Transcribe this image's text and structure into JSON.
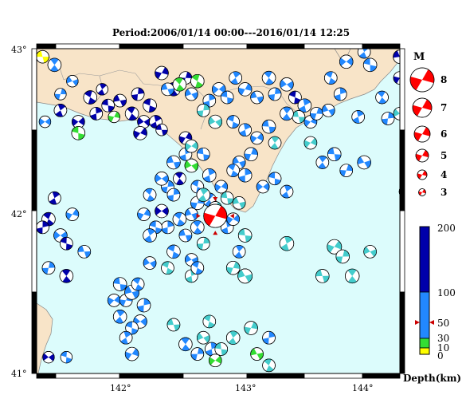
{
  "title": "Period:2006/01/14 00:00---2016/01/14 12:25",
  "lat_labels": [
    "43°",
    "42°",
    "41°"
  ],
  "lon_labels": [
    "142°",
    "143°",
    "144°"
  ],
  "magnitude_legend": {
    "heading": "M",
    "values": [
      "8",
      "7",
      "6",
      "5",
      "4",
      "3"
    ]
  },
  "depth_legend": {
    "labels": [
      "200",
      "100",
      "50",
      "30",
      "10",
      "0"
    ],
    "axis_label": "Depth(km)"
  },
  "colors": {
    "sea": "#dcfcfc",
    "land": "#f8e4c8",
    "mainshock": "#ff0000",
    "depth_0_10": "#ffff00",
    "depth_10_30": "#33dd33",
    "depth_30_70": "#44cccc",
    "depth_70_100": "#2288ff",
    "depth_100_200": "#0000aa"
  },
  "mainshock": {
    "lon": 142.75,
    "lat": 41.97,
    "magnitude": 7.0
  },
  "events": [
    [
      141.3,
      42.95,
      4.3,
      0
    ],
    [
      141.4,
      42.9,
      4.5,
      100
    ],
    [
      141.45,
      42.72,
      4,
      100
    ],
    [
      141.55,
      42.8,
      4,
      100
    ],
    [
      141.7,
      42.7,
      4.5,
      200
    ],
    [
      141.75,
      42.6,
      4.3,
      200
    ],
    [
      141.6,
      42.55,
      4.3,
      200
    ],
    [
      141.85,
      42.65,
      4.3,
      200
    ],
    [
      141.8,
      42.75,
      4,
      200
    ],
    [
      141.9,
      42.58,
      4,
      20
    ],
    [
      141.95,
      42.68,
      4.3,
      200
    ],
    [
      142.05,
      42.6,
      4.5,
      200
    ],
    [
      142.1,
      42.72,
      4.3,
      200
    ],
    [
      142.15,
      42.55,
      4.3,
      200
    ],
    [
      142.2,
      42.65,
      4.5,
      200
    ],
    [
      142.25,
      42.55,
      4.3,
      200
    ],
    [
      142.12,
      42.48,
      4.5,
      200
    ],
    [
      142.3,
      42.5,
      4,
      200
    ],
    [
      142.4,
      42.75,
      4.5,
      200
    ],
    [
      142.5,
      42.82,
      4.3,
      200
    ],
    [
      142.55,
      42.72,
      4.3,
      100
    ],
    [
      142.6,
      42.8,
      4.5,
      20
    ],
    [
      142.7,
      42.68,
      4.3,
      100
    ],
    [
      142.78,
      42.75,
      4.5,
      100
    ],
    [
      142.85,
      42.7,
      4.3,
      100
    ],
    [
      142.92,
      42.82,
      4.3,
      100
    ],
    [
      143.0,
      42.75,
      4.5,
      100
    ],
    [
      143.1,
      42.7,
      4.3,
      100
    ],
    [
      143.2,
      42.82,
      4.5,
      100
    ],
    [
      143.25,
      42.72,
      4.3,
      100
    ],
    [
      143.35,
      42.78,
      4.5,
      100
    ],
    [
      143.42,
      42.7,
      4.3,
      200
    ],
    [
      143.5,
      42.65,
      4.5,
      100
    ],
    [
      143.55,
      42.55,
      4.3,
      100
    ],
    [
      143.45,
      42.58,
      4.3,
      60
    ],
    [
      143.35,
      42.6,
      4.5,
      100
    ],
    [
      143.6,
      42.6,
      4.3,
      100
    ],
    [
      143.7,
      42.62,
      4.3,
      100
    ],
    [
      143.72,
      42.82,
      4.3,
      100
    ],
    [
      143.8,
      42.72,
      4.3,
      100
    ],
    [
      143.85,
      42.92,
      4.5,
      100
    ],
    [
      144.05,
      42.9,
      4.5,
      100
    ],
    [
      144.0,
      42.98,
      4.3,
      100
    ],
    [
      144.3,
      42.82,
      4.3,
      200
    ],
    [
      144.3,
      42.95,
      4.5,
      200
    ],
    [
      144.15,
      42.7,
      4.3,
      100
    ],
    [
      144.2,
      42.57,
      4.3,
      100
    ],
    [
      144.3,
      42.6,
      4.3,
      60
    ],
    [
      144.45,
      42.65,
      4.3,
      100
    ],
    [
      143.95,
      42.58,
      4.3,
      100
    ],
    [
      143.55,
      42.42,
      4.3,
      60
    ],
    [
      143.75,
      42.35,
      4.5,
      100
    ],
    [
      143.65,
      42.3,
      4.3,
      100
    ],
    [
      143.85,
      42.25,
      4.3,
      100
    ],
    [
      144.0,
      42.3,
      4.5,
      100
    ],
    [
      144.4,
      42.22,
      4.3,
      100
    ],
    [
      144.35,
      42.12,
      4.5,
      200
    ],
    [
      141.32,
      42.55,
      4,
      100
    ],
    [
      141.6,
      42.48,
      4.5,
      20
    ],
    [
      141.45,
      42.62,
      4.3,
      200
    ],
    [
      142.3,
      42.85,
      4.5,
      200
    ],
    [
      142.35,
      42.75,
      4.3,
      100
    ],
    [
      142.45,
      42.78,
      4.5,
      20
    ],
    [
      142.65,
      42.62,
      4.3,
      60
    ],
    [
      142.75,
      42.55,
      4.5,
      60
    ],
    [
      142.9,
      42.55,
      4.3,
      100
    ],
    [
      143.0,
      42.5,
      4.3,
      100
    ],
    [
      143.1,
      42.45,
      4.3,
      100
    ],
    [
      143.2,
      42.52,
      4.5,
      100
    ],
    [
      143.25,
      42.42,
      4.3,
      60
    ],
    [
      143.05,
      42.35,
      4.5,
      100
    ],
    [
      142.95,
      42.3,
      4.3,
      100
    ],
    [
      142.9,
      42.25,
      4.3,
      100
    ],
    [
      143.0,
      42.22,
      4.5,
      100
    ],
    [
      143.15,
      42.15,
      4.3,
      100
    ],
    [
      143.25,
      42.2,
      4.3,
      100
    ],
    [
      143.35,
      42.12,
      4.3,
      100
    ],
    [
      142.5,
      42.45,
      4.3,
      200
    ],
    [
      142.4,
      42.3,
      4.5,
      100
    ],
    [
      142.45,
      42.2,
      4.3,
      200
    ],
    [
      142.35,
      42.15,
      4.3,
      100
    ],
    [
      142.55,
      42.28,
      4.5,
      20
    ],
    [
      142.6,
      42.15,
      4.3,
      100
    ],
    [
      142.7,
      42.22,
      4.5,
      100
    ],
    [
      142.8,
      42.15,
      4.3,
      100
    ],
    [
      142.85,
      42.08,
      4.3,
      60
    ],
    [
      142.7,
      42.07,
      4.5,
      100
    ],
    [
      142.6,
      42.05,
      4.5,
      100
    ],
    [
      142.55,
      41.98,
      4.3,
      100
    ],
    [
      142.45,
      41.95,
      4.5,
      100
    ],
    [
      142.35,
      41.9,
      4.3,
      100
    ],
    [
      142.3,
      42.0,
      4.5,
      200
    ],
    [
      142.25,
      41.9,
      4.3,
      100
    ],
    [
      142.2,
      41.85,
      4.5,
      100
    ],
    [
      142.15,
      41.98,
      4.3,
      100
    ],
    [
      142.5,
      41.85,
      4.3,
      100
    ],
    [
      142.6,
      41.9,
      4.5,
      100
    ],
    [
      142.65,
      41.8,
      4.3,
      60
    ],
    [
      142.55,
      41.7,
      4.3,
      100
    ],
    [
      142.4,
      41.75,
      4.5,
      100
    ],
    [
      142.85,
      41.9,
      4.3,
      100
    ],
    [
      142.9,
      41.95,
      4.3,
      100
    ],
    [
      143.0,
      41.85,
      4.5,
      60
    ],
    [
      142.95,
      41.75,
      4.3,
      100
    ],
    [
      142.9,
      41.65,
      4.5,
      60
    ],
    [
      143.0,
      41.6,
      4.8,
      60
    ],
    [
      141.35,
      41.95,
      4.5,
      200
    ],
    [
      141.3,
      41.9,
      4.3,
      200
    ],
    [
      141.45,
      41.85,
      4.5,
      100
    ],
    [
      141.5,
      41.8,
      4.3,
      200
    ],
    [
      141.4,
      42.08,
      4.3,
      200
    ],
    [
      141.55,
      41.98,
      4.3,
      100
    ],
    [
      141.65,
      41.75,
      4.3,
      100
    ],
    [
      141.5,
      41.6,
      4.5,
      200
    ],
    [
      141.35,
      41.65,
      4.3,
      100
    ],
    [
      142.2,
      41.68,
      4.3,
      100
    ],
    [
      142.35,
      41.65,
      4.3,
      60
    ],
    [
      142.55,
      41.6,
      4.3,
      60
    ],
    [
      141.9,
      41.45,
      4.3,
      100
    ],
    [
      141.95,
      41.55,
      4.5,
      100
    ],
    [
      141.95,
      41.35,
      4.5,
      100
    ],
    [
      142.0,
      41.45,
      4.3,
      100
    ],
    [
      142.05,
      41.5,
      4.8,
      100
    ],
    [
      142.1,
      41.55,
      4.3,
      100
    ],
    [
      142.15,
      41.42,
      4.5,
      100
    ],
    [
      142.12,
      41.32,
      4.5,
      100
    ],
    [
      142.05,
      41.28,
      4.3,
      100
    ],
    [
      142.0,
      41.22,
      4.3,
      100
    ],
    [
      142.05,
      41.12,
      4.5,
      100
    ],
    [
      142.4,
      41.3,
      4.3,
      60
    ],
    [
      142.5,
      41.18,
      4.5,
      100
    ],
    [
      142.6,
      41.12,
      4.3,
      100
    ],
    [
      142.65,
      41.22,
      4.3,
      60
    ],
    [
      142.7,
      41.32,
      4.3,
      60
    ],
    [
      142.72,
      41.15,
      4.5,
      100
    ],
    [
      142.75,
      41.08,
      4.3,
      20
    ],
    [
      142.8,
      41.15,
      4.3,
      60
    ],
    [
      142.9,
      41.22,
      4.5,
      60
    ],
    [
      143.05,
      41.28,
      4.5,
      60
    ],
    [
      143.1,
      41.12,
      4.3,
      20
    ],
    [
      143.2,
      41.05,
      4.3,
      60
    ],
    [
      143.2,
      41.22,
      4.3,
      100
    ],
    [
      141.35,
      41.1,
      4,
      200
    ],
    [
      141.5,
      41.1,
      4,
      100
    ],
    [
      143.35,
      41.8,
      4.7,
      60
    ],
    [
      143.75,
      41.78,
      4.8,
      60
    ],
    [
      143.65,
      41.6,
      4.5,
      60
    ],
    [
      143.9,
      41.6,
      4.7,
      60
    ],
    [
      143.82,
      41.72,
      4.5,
      60
    ],
    [
      144.05,
      41.75,
      4.3,
      60
    ],
    [
      142.6,
      41.65,
      4.3,
      100
    ],
    [
      142.5,
      42.35,
      4.3,
      100
    ],
    [
      142.55,
      42.4,
      4.3,
      60
    ],
    [
      142.65,
      42.35,
      4.3,
      100
    ],
    [
      142.65,
      42.1,
      4.5,
      60
    ],
    [
      142.75,
      42.02,
      4.3,
      60
    ],
    [
      142.95,
      42.05,
      4.3,
      60
    ],
    [
      142.2,
      42.1,
      4.3,
      100
    ],
    [
      142.4,
      42.1,
      4.3,
      100
    ],
    [
      142.3,
      42.2,
      4.5,
      100
    ]
  ]
}
